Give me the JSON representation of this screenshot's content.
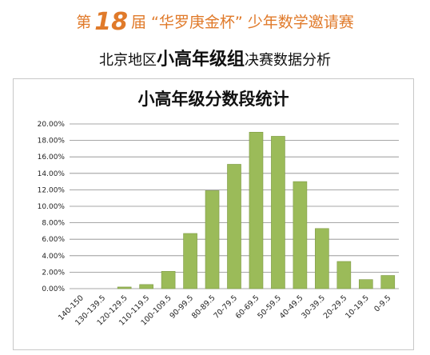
{
  "header": {
    "line1_prefix": "第",
    "line1_number": "18",
    "line1_suffix": "届 “华罗庚金杯” 少年数学邀请赛",
    "line2_prefix": "北京地区",
    "line2_emphasis": "小高年级组",
    "line2_suffix": "决赛数据分析"
  },
  "colors": {
    "header_accent": "#e07a2a",
    "bar_fill": "#9bbb59",
    "grid": "#8a8a8a"
  },
  "chart_data": {
    "type": "bar",
    "title": "小高年级分数段统计",
    "xlabel": "",
    "ylabel": "",
    "categories": [
      "140-150",
      "130-139.5",
      "120-129.5",
      "110-119.5",
      "100-109.5",
      "90-99.5",
      "80-89.5",
      "70-79.5",
      "60-69.5",
      "50-59.5",
      "40-49.5",
      "30-39.5",
      "20-29.5",
      "10-19.5",
      "0-9.5"
    ],
    "values": [
      0.0,
      0.0,
      0.2,
      0.5,
      2.1,
      6.7,
      11.9,
      15.1,
      19.0,
      18.5,
      13.0,
      7.3,
      3.3,
      1.1,
      1.6
    ],
    "yticks": [
      "0.00%",
      "2.00%",
      "4.00%",
      "6.00%",
      "8.00%",
      "10.00%",
      "12.00%",
      "14.00%",
      "16.00%",
      "18.00%",
      "20.00%"
    ],
    "ylim": [
      0,
      20
    ],
    "grid": true,
    "legend": "none"
  }
}
